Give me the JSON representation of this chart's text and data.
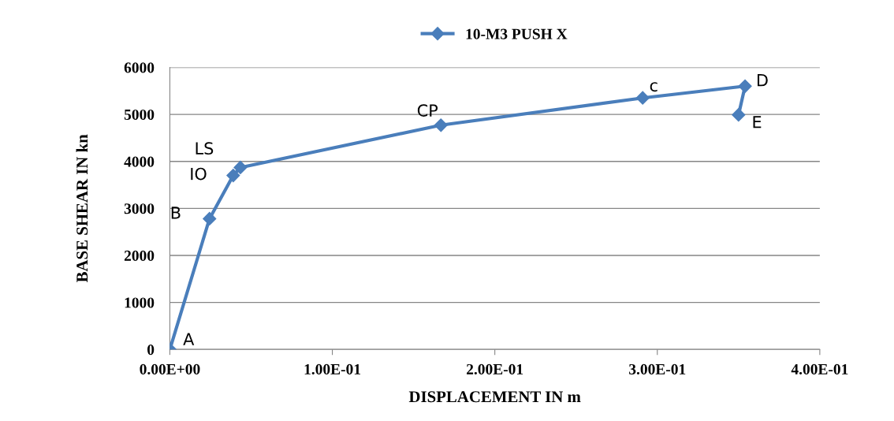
{
  "chart_data": {
    "type": "line",
    "xlabel": "DISPLACEMENT IN m",
    "ylabel": "BASE SHEAR IN kn",
    "x": [
      0,
      0.0244,
      0.039,
      0.0434,
      0.1668,
      0.291,
      0.354,
      0.35
    ],
    "series": [
      {
        "name": "10-M3 PUSH X",
        "color": "#4a7ebb",
        "values": [
          0,
          2780,
          3700,
          3870,
          4770,
          5350,
          5600,
          4990
        ]
      }
    ],
    "xlim": [
      0,
      0.4
    ],
    "xticks": [
      {
        "value": 0,
        "label": "0.00E+00"
      },
      {
        "value": 0.1,
        "label": "1.00E-01"
      },
      {
        "value": 0.2,
        "label": "2.00E-01"
      },
      {
        "value": 0.3,
        "label": "3.00E-01"
      },
      {
        "value": 0.4,
        "label": "4.00E-01"
      }
    ],
    "ylim": [
      0,
      6000
    ],
    "yticks": [
      0,
      1000,
      2000,
      3000,
      4000,
      5000,
      6000
    ],
    "grid": "y",
    "legend": "top",
    "marker": "diamond",
    "line_style": "solid",
    "annotations": [
      {
        "text": "A",
        "x": 0,
        "y": 0
      },
      {
        "text": "B",
        "x": 0.0244,
        "y": 2780
      },
      {
        "text": "IO",
        "x": 0.039,
        "y": 3700
      },
      {
        "text": "LS",
        "x": 0.0434,
        "y": 3870
      },
      {
        "text": "CP",
        "x": 0.1668,
        "y": 4770
      },
      {
        "text": "c",
        "x": 0.291,
        "y": 5350
      },
      {
        "text": "D",
        "x": 0.354,
        "y": 5600
      },
      {
        "text": "E",
        "x": 0.35,
        "y": 4990
      }
    ]
  }
}
